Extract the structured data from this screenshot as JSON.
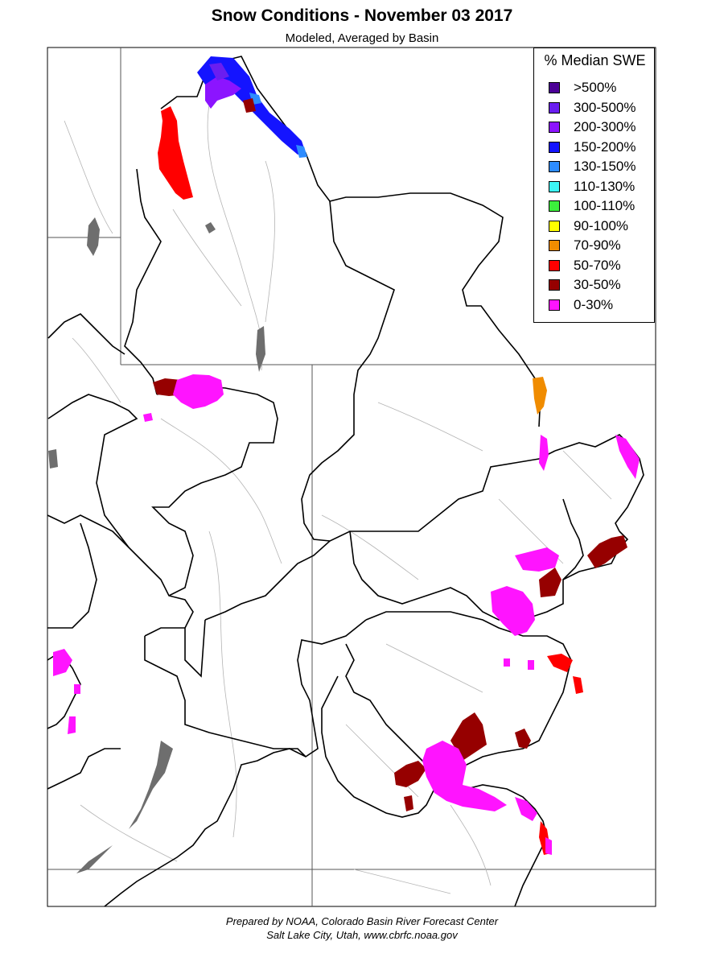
{
  "title": "Snow Conditions - November 03 2017",
  "subtitle": "Modeled, Averaged by Basin",
  "legend": {
    "title": "% Median SWE",
    "items": [
      {
        "label": ">500%",
        "color": "#4b0096"
      },
      {
        "label": "300-500%",
        "color": "#6a1ef0"
      },
      {
        "label": "200-300%",
        "color": "#8c14ff"
      },
      {
        "label": "150-200%",
        "color": "#1414ff"
      },
      {
        "label": "130-150%",
        "color": "#2d8cff"
      },
      {
        "label": "110-130%",
        "color": "#3cf5f5"
      },
      {
        "label": "100-110%",
        "color": "#3cf03c"
      },
      {
        "label": "90-100%",
        "color": "#ffff00"
      },
      {
        "label": "70-90%",
        "color": "#f08c00"
      },
      {
        "label": "50-70%",
        "color": "#ff0000"
      },
      {
        "label": "30-50%",
        "color": "#960000"
      },
      {
        "label": "0-30%",
        "color": "#ff14ff"
      }
    ]
  },
  "footer": {
    "line1": "Prepared by NOAA, Colorado Basin River Forecast Center",
    "line2": "Salt Lake City, Utah, www.cbrfc.noaa.gov"
  }
}
